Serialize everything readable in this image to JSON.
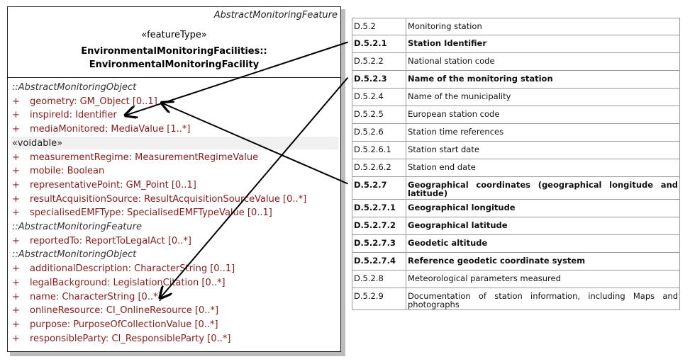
{
  "uml": {
    "abstract_name": "AbstractMonitoringFeature",
    "stereotype": "«featureType»",
    "class_name_line1": "EnvironmentalMonitoringFacilities::",
    "class_name_line2": "EnvironmentalMonitoringFacility",
    "rows": [
      {
        "kind": "group",
        "text": "::AbstractMonitoringObject"
      },
      {
        "kind": "attr",
        "text": "geometry:  GM_Object [0..1]"
      },
      {
        "kind": "attr",
        "text": "inspireId:  Identifier"
      },
      {
        "kind": "attr",
        "text": "mediaMonitored:  MediaValue [1..*]"
      },
      {
        "kind": "voidable",
        "text": "«voidable»"
      },
      {
        "kind": "attr",
        "text": "measurementRegime:  MeasurementRegimeValue"
      },
      {
        "kind": "attr",
        "text": "mobile:  Boolean"
      },
      {
        "kind": "attr",
        "text": "representativePoint:  GM_Point [0..1]"
      },
      {
        "kind": "attr",
        "text": "resultAcquisitionSource:  ResultAcquisitionSourceValue [0..*]"
      },
      {
        "kind": "attr",
        "text": "specialisedEMFType:  SpecialisedEMFTypeValue [0..1]"
      },
      {
        "kind": "group",
        "text": "::AbstractMonitoringFeature"
      },
      {
        "kind": "attr",
        "text": "reportedTo:  ReportToLegalAct [0..*]"
      },
      {
        "kind": "group",
        "text": "::AbstractMonitoringObject"
      },
      {
        "kind": "attr",
        "text": "additionalDescription:  CharacterString [0..1]"
      },
      {
        "kind": "attr",
        "text": "legalBackground:  LegislationCitation [0..*]"
      },
      {
        "kind": "attr",
        "text": "name:  CharacterString [0..*]"
      },
      {
        "kind": "attr",
        "text": "onlineResource:  CI_OnlineResource [0..*]"
      },
      {
        "kind": "attr",
        "text": "purpose:  PurposeOfCollectionValue [0..*]"
      },
      {
        "kind": "attr",
        "text": "responsibleParty:  CI_ResponsibleParty [0..*]"
      }
    ],
    "plus": "+"
  },
  "table": {
    "rows": [
      {
        "code": "D.5.2",
        "label": "Monitoring station",
        "bold": false
      },
      {
        "code": "D.5.2.1",
        "label": "Station Identifier",
        "bold": true
      },
      {
        "code": "D.5.2.2",
        "label": "National station code",
        "bold": false
      },
      {
        "code": "D.5.2.3",
        "label": "Name of the monitoring station",
        "bold": true
      },
      {
        "code": "D.5.2.4",
        "label": "Name  of the municipality",
        "bold": false
      },
      {
        "code": "D.5.2.5",
        "label": "European station code",
        "bold": false
      },
      {
        "code": "D.5.2.6",
        "label": "Station time references",
        "bold": false
      },
      {
        "code": "D.5.2.6.1",
        "label": "Station start date",
        "bold": false
      },
      {
        "code": "D.5.2.6.2",
        "label": "Station end date",
        "bold": false
      },
      {
        "code": "D.5.2.7",
        "label": "Geographical coordinates (geographical longitude and latitude)",
        "bold": true
      },
      {
        "code": "D.5.2.7.1",
        "label": "Geographical longitude",
        "bold": true
      },
      {
        "code": "D.5.2.7.2",
        "label": "Geographical latitude",
        "bold": true
      },
      {
        "code": "D.5.2.7.3",
        "label": "Geodetic altitude",
        "bold": true
      },
      {
        "code": "D.5.2.7.4",
        "label": "Reference geodetic coordinate system",
        "bold": true
      },
      {
        "code": "D.5.2.8",
        "label": "Meteorological parameters measured",
        "bold": false
      },
      {
        "code": "D.5.2.9",
        "label": "Documentation of station information, including Maps and photographs",
        "bold": false
      }
    ]
  },
  "mappings": [
    {
      "from": "D.5.2.1",
      "to": "inspireId"
    },
    {
      "from": "D.5.2.3",
      "to": "name"
    },
    {
      "from": "D.5.2.7",
      "to": "geometry"
    }
  ]
}
